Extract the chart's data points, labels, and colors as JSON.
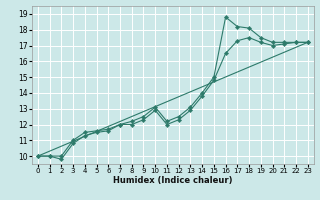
{
  "xlabel": "Humidex (Indice chaleur)",
  "ylabel": "",
  "bg_color": "#cce8e8",
  "grid_color": "#ffffff",
  "line_color": "#2d7a6a",
  "xlim": [
    -0.5,
    23.5
  ],
  "ylim": [
    9.5,
    19.5
  ],
  "xticks": [
    0,
    1,
    2,
    3,
    4,
    5,
    6,
    7,
    8,
    9,
    10,
    11,
    12,
    13,
    14,
    15,
    16,
    17,
    18,
    19,
    20,
    21,
    22,
    23
  ],
  "yticks": [
    10,
    11,
    12,
    13,
    14,
    15,
    16,
    17,
    18,
    19
  ],
  "series": [
    {
      "x": [
        0,
        1,
        2,
        3,
        4,
        5,
        6,
        7,
        8,
        9,
        10,
        11,
        12,
        13,
        14,
        15,
        16,
        17,
        18,
        19,
        20,
        21,
        22,
        23
      ],
      "y": [
        10,
        10,
        10.0,
        11.0,
        11.5,
        11.6,
        11.7,
        12.0,
        12.2,
        12.5,
        13.1,
        12.2,
        12.5,
        13.1,
        14.0,
        15.0,
        18.8,
        18.2,
        18.1,
        17.5,
        17.2,
        17.2,
        17.2,
        17.2
      ],
      "markers": true
    },
    {
      "x": [
        0,
        1,
        2,
        3,
        4,
        5,
        6,
        7,
        8,
        9,
        10,
        11,
        12,
        13,
        14,
        15,
        16,
        17,
        18,
        19,
        20,
        21,
        22,
        23
      ],
      "y": [
        10,
        10,
        9.8,
        10.8,
        11.3,
        11.5,
        11.6,
        12.0,
        12.0,
        12.3,
        12.9,
        12.0,
        12.3,
        12.9,
        13.8,
        14.8,
        16.5,
        17.3,
        17.5,
        17.2,
        17.0,
        17.1,
        17.2,
        17.2
      ],
      "markers": true
    },
    {
      "x": [
        0,
        23
      ],
      "y": [
        10,
        17.2
      ],
      "markers": false
    }
  ]
}
